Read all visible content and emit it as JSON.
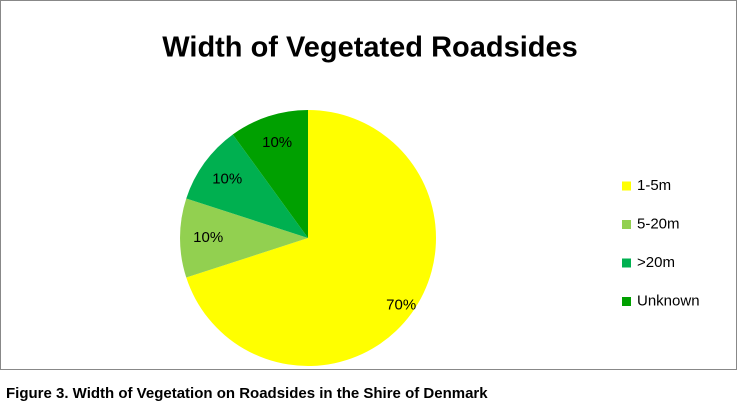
{
  "chart_data": {
    "type": "pie",
    "title": "Width of Vegetated Roadsides",
    "categories": [
      "1-5m",
      "5-20m",
      ">20m",
      "Unknown"
    ],
    "values": [
      70,
      10,
      10,
      10
    ],
    "value_labels": [
      "70%",
      "10%",
      "10%",
      "10%"
    ],
    "colors": [
      "#ffff00",
      "#92d050",
      "#00b050",
      "#00a000"
    ],
    "legend": "right",
    "caption": "Figure 3. Width of Vegetation on Roadsides in the Shire of Denmark"
  }
}
